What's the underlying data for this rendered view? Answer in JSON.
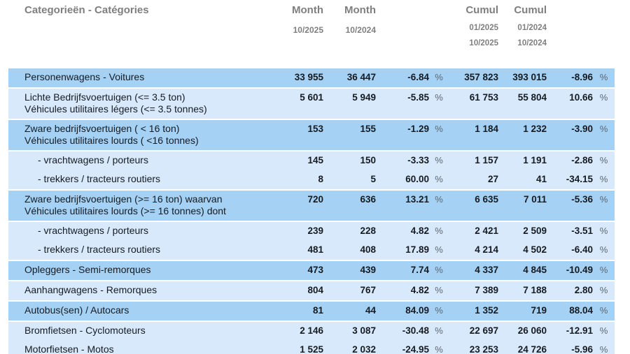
{
  "table": {
    "title": "Categorieën - Catégories",
    "percent_symbol": "%",
    "col_headers": {
      "month1": {
        "label": "Month",
        "sub": "10/2025"
      },
      "month2": {
        "label": "Month",
        "sub": "10/2024"
      },
      "cumul1": {
        "label": "Cumul",
        "sub1": "01/2025",
        "sub2": "10/2025"
      },
      "cumul2": {
        "label": "Cumul",
        "sub1": "01/2024",
        "sub2": "10/2024"
      }
    },
    "colors": {
      "row_dark": "#a4d1f4",
      "row_light": "#d8e9fb",
      "header_text": "#7f7f7f",
      "value_text": "#161b22",
      "percent_text": "#5d6771"
    },
    "rows": [
      {
        "label_lines": [
          "Personenwagens - Voitures"
        ],
        "indent": false,
        "shade": "dark",
        "month1": "33 955",
        "month2": "36 447",
        "pct1": "-6.84",
        "cumul1": "357 823",
        "cumul2": "393 015",
        "pct2": "-8.96"
      },
      {
        "label_lines": [
          "Lichte Bedrijfsvoertuigen (<= 3.5 ton)",
          "Véhicules utilitaires légers (<= 3.5 tonnes)"
        ],
        "indent": false,
        "shade": "light",
        "month1": "5 601",
        "month2": "5 949",
        "pct1": "-5.85",
        "cumul1": "61 753",
        "cumul2": "55 804",
        "pct2": "10.66"
      },
      {
        "label_lines": [
          "Zware bedrijfsvoertuigen ( < 16 ton)",
          "Véhicules utilitaires lourds ( <16 tonnes)"
        ],
        "indent": false,
        "shade": "dark",
        "month1": "153",
        "month2": "155",
        "pct1": "-1.29",
        "cumul1": "1 184",
        "cumul2": "1 232",
        "pct2": "-3.90"
      },
      {
        "label_lines": [
          "- vrachtwagens / porteurs"
        ],
        "indent": true,
        "shade": "light",
        "month1": "145",
        "month2": "150",
        "pct1": "-3.33",
        "cumul1": "1 157",
        "cumul2": "1 191",
        "pct2": "-2.86"
      },
      {
        "label_lines": [
          "- trekkers / tracteurs routiers"
        ],
        "indent": true,
        "shade": "light",
        "month1": "8",
        "month2": "5",
        "pct1": "60.00",
        "cumul1": "27",
        "cumul2": "41",
        "pct2": "-34.15"
      },
      {
        "label_lines": [
          "Zware bedrijfsvoertuigen (>= 16 ton) waarvan",
          "Véhicules utilitaires lourds (>= 16 tonnes) dont"
        ],
        "indent": false,
        "shade": "dark",
        "month1": "720",
        "month2": "636",
        "pct1": "13.21",
        "cumul1": "6 635",
        "cumul2": "7 011",
        "pct2": "-5.36"
      },
      {
        "label_lines": [
          "- vrachtwagens / porteurs"
        ],
        "indent": true,
        "shade": "light",
        "month1": "239",
        "month2": "228",
        "pct1": "4.82",
        "cumul1": "2 421",
        "cumul2": "2 509",
        "pct2": "-3.51"
      },
      {
        "label_lines": [
          "- trekkers / tracteurs routiers"
        ],
        "indent": true,
        "shade": "light",
        "month1": "481",
        "month2": "408",
        "pct1": "17.89",
        "cumul1": "4 214",
        "cumul2": "4 502",
        "pct2": "-6.40"
      },
      {
        "label_lines": [
          "Opleggers - Semi-remorques"
        ],
        "indent": false,
        "shade": "dark",
        "month1": "473",
        "month2": "439",
        "pct1": "7.74",
        "cumul1": "4 337",
        "cumul2": "4 845",
        "pct2": "-10.49"
      },
      {
        "label_lines": [
          "Aanhangwagens - Remorques"
        ],
        "indent": false,
        "shade": "light",
        "month1": "804",
        "month2": "767",
        "pct1": "4.82",
        "cumul1": "7 389",
        "cumul2": "7 188",
        "pct2": "2.80"
      },
      {
        "label_lines": [
          "Autobus(sen) / Autocars"
        ],
        "indent": false,
        "shade": "dark",
        "month1": "81",
        "month2": "44",
        "pct1": "84.09",
        "cumul1": "1 352",
        "cumul2": "719",
        "pct2": "88.04"
      },
      {
        "label_lines": [
          "Bromfietsen - Cyclomoteurs"
        ],
        "indent": false,
        "shade": "light",
        "month1": "2 146",
        "month2": "3 087",
        "pct1": "-30.48",
        "cumul1": "22 697",
        "cumul2": "26 060",
        "pct2": "-12.91"
      },
      {
        "label_lines": [
          "Motorfietsen - Motos"
        ],
        "indent": false,
        "shade": "light",
        "month1": "1 525",
        "month2": "2 032",
        "pct1": "-24.95",
        "cumul1": "23 253",
        "cumul2": "24 726",
        "pct2": "-5.96"
      }
    ]
  }
}
